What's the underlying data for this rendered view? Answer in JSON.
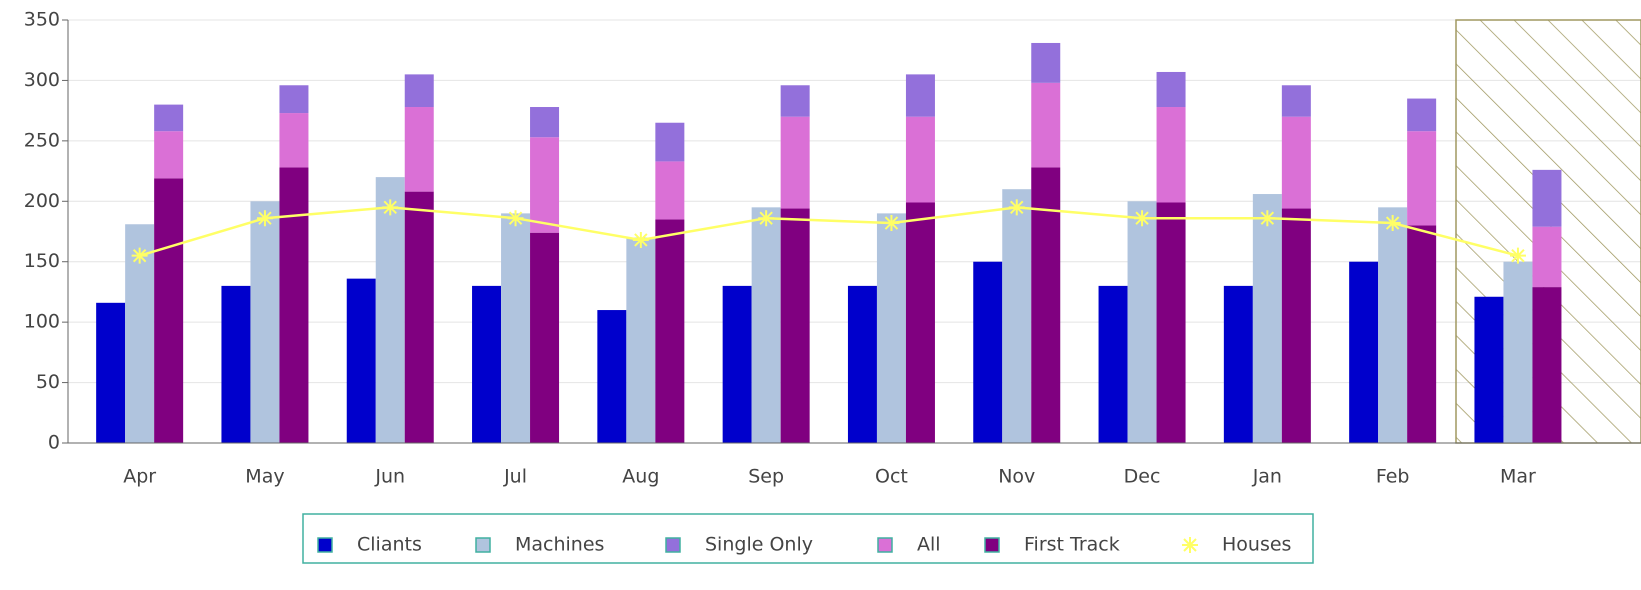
{
  "chart_data": {
    "type": "bar",
    "categories": [
      "Apr",
      "May",
      "Jun",
      "Jul",
      "Aug",
      "Sep",
      "Oct",
      "Nov",
      "Dec",
      "Jan",
      "Feb",
      "Mar"
    ],
    "series": [
      {
        "name": "Cliants",
        "color": "#0000cc",
        "values": [
          116,
          130,
          136,
          130,
          110,
          130,
          130,
          150,
          130,
          130,
          150,
          121
        ]
      },
      {
        "name": "Machines",
        "color": "#b0c4de",
        "values": [
          181,
          200,
          220,
          190,
          170,
          195,
          190,
          210,
          200,
          206,
          195,
          150
        ]
      },
      {
        "name": "Single Only",
        "color": "#9370db",
        "stack": true,
        "values": [
          22,
          23,
          27,
          25,
          32,
          26,
          35,
          33,
          29,
          26,
          27,
          47
        ]
      },
      {
        "name": "All",
        "color": "#da70d6",
        "stack": true,
        "values": [
          39,
          45,
          70,
          79,
          48,
          76,
          71,
          70,
          79,
          76,
          78,
          50
        ]
      },
      {
        "name": "First Track",
        "color": "#800080",
        "stack": true,
        "values": [
          219,
          228,
          208,
          174,
          185,
          194,
          199,
          228,
          199,
          194,
          180,
          129
        ]
      },
      {
        "name": "Houses",
        "color": "#ffff66",
        "type": "line",
        "values": [
          155,
          186,
          195,
          186,
          168,
          186,
          182,
          195,
          186,
          186,
          182,
          155
        ]
      }
    ],
    "ylim": [
      0,
      350
    ],
    "yticks": [
      0,
      50,
      100,
      150,
      200,
      250,
      300,
      350
    ],
    "grid": true
  }
}
